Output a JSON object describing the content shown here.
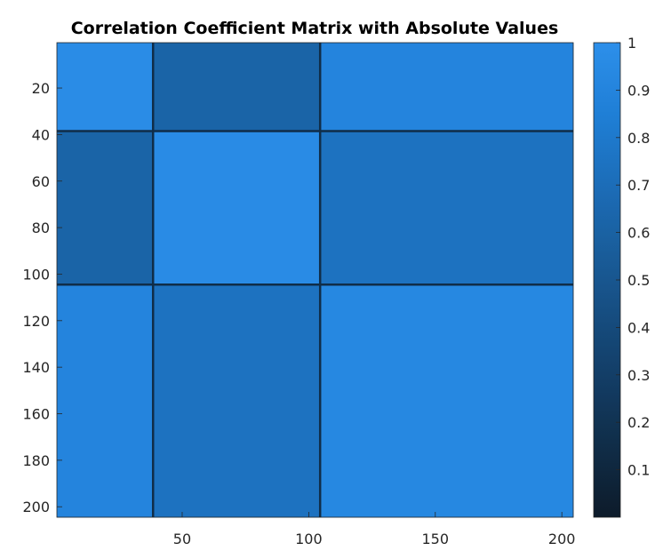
{
  "chart_data": {
    "type": "heatmap",
    "title": "Correlation Coefficient Matrix with Absolute Values",
    "xlabel": "",
    "ylabel": "",
    "matrix_size": 204,
    "xlim": [
      1,
      204
    ],
    "ylim": [
      1,
      204
    ],
    "y_direction": "reversed",
    "x_ticks": [
      50,
      100,
      150,
      200
    ],
    "y_ticks": [
      20,
      40,
      60,
      80,
      100,
      120,
      140,
      160,
      180,
      200
    ],
    "colorbar": {
      "range": [
        0,
        1
      ],
      "ticks": [
        0.1,
        0.2,
        0.3,
        0.4,
        0.5,
        0.6,
        0.7,
        0.8,
        0.9,
        1
      ],
      "colors": [
        "#0d1b2a",
        "#1f7fd6",
        "#2d8fea"
      ],
      "location": "right"
    },
    "blocks": [
      {
        "start": 1,
        "end": 38
      },
      {
        "start": 39,
        "end": 104
      },
      {
        "start": 105,
        "end": 204
      }
    ],
    "block_values": [
      [
        0.97,
        0.62,
        0.9
      ],
      [
        0.62,
        0.96,
        0.74
      ],
      [
        0.9,
        0.74,
        0.93
      ]
    ],
    "grid": false
  }
}
